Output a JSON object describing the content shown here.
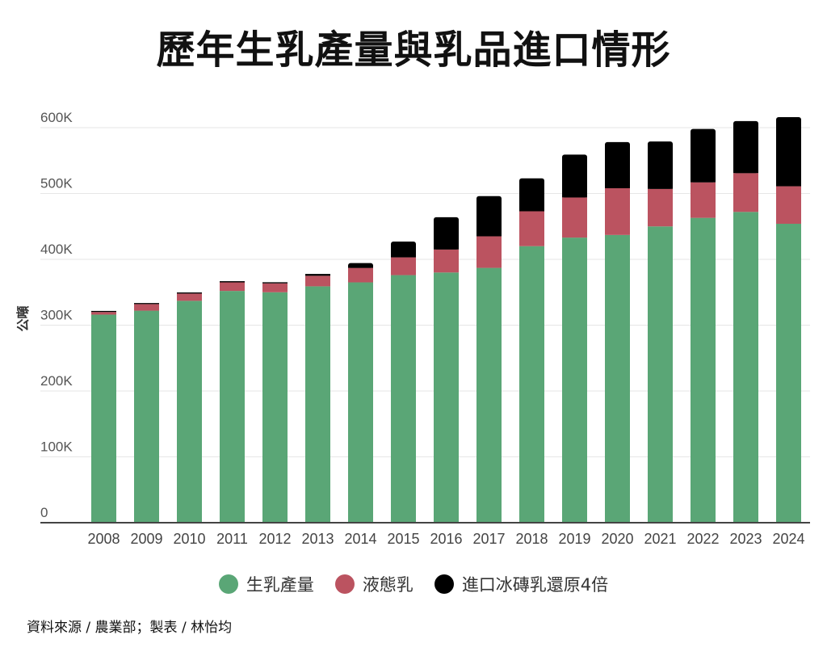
{
  "chart_data": {
    "type": "bar",
    "stacked": true,
    "title": "歷年生乳產量與乳品進口情形",
    "xlabel": "",
    "ylabel": "公噸",
    "ylim": [
      0,
      600000
    ],
    "yticks": [
      0,
      100000,
      200000,
      300000,
      400000,
      500000,
      600000
    ],
    "ytick_labels": [
      "0",
      "100K",
      "200K",
      "300K",
      "400K",
      "500K",
      "600K"
    ],
    "grid": true,
    "legend_position": "bottom-center",
    "categories": [
      "2008",
      "2009",
      "2010",
      "2011",
      "2012",
      "2013",
      "2014",
      "2015",
      "2016",
      "2017",
      "2018",
      "2019",
      "2020",
      "2021",
      "2022",
      "2023",
      "2024"
    ],
    "series": [
      {
        "name": "生乳產量",
        "color": "#5aa676",
        "values": [
          316000,
          322000,
          337000,
          352000,
          350000,
          359000,
          365000,
          376000,
          380000,
          387000,
          420000,
          433000,
          437000,
          450000,
          463000,
          472000,
          454000
        ]
      },
      {
        "name": "液態乳",
        "color": "#bb5360",
        "values": [
          4000,
          10000,
          11000,
          13000,
          13500,
          16000,
          22000,
          27000,
          35000,
          48000,
          53000,
          61000,
          71000,
          57000,
          54000,
          59000,
          57000
        ]
      },
      {
        "name": "進口冰磚乳還原4倍",
        "color": "#000000",
        "values": [
          1600,
          1600,
          1700,
          1800,
          1700,
          2800,
          7400,
          24000,
          49000,
          61000,
          50000,
          65000,
          70000,
          72000,
          81000,
          79000,
          105000
        ]
      }
    ]
  },
  "footnote": "資料來源 / 農業部；製表 / 林怡均"
}
